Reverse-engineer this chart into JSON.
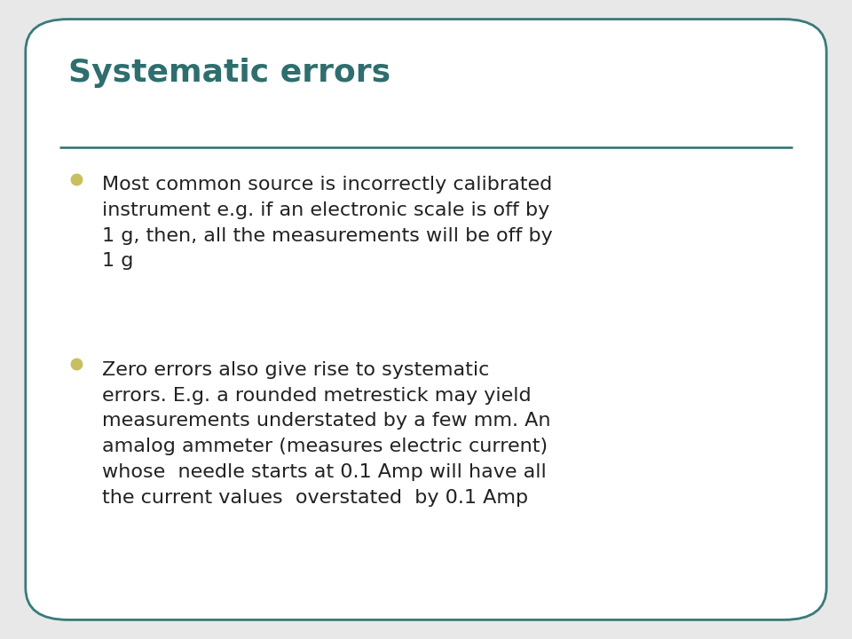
{
  "title": "Systematic errors",
  "title_color": "#2E6E6E",
  "title_fontsize": 26,
  "separator_color": "#2E6E6E",
  "background_color": "#FFFFFF",
  "outer_bg_color": "#E8E8E8",
  "border_color": "#3A7A7A",
  "bullet_color": "#C8C060",
  "text_color": "#222222",
  "bullet1": "Most common source is incorrectly calibrated\ninstrument e.g. if an electronic scale is off by\n1 g, then, all the measurements will be off by\n1 g",
  "bullet2": "Zero errors also give rise to systematic\nerrors. E.g. a rounded metrestick may yield\nmeasurements understated by a few mm. An\namalog ammeter (measures electric current)\nwhose  needle starts at 0.1 Amp will have all\nthe current values  overstated  by 0.1 Amp",
  "text_fontsize": 16,
  "fig_width": 9.6,
  "fig_height": 7.2,
  "fig_dpi": 100
}
